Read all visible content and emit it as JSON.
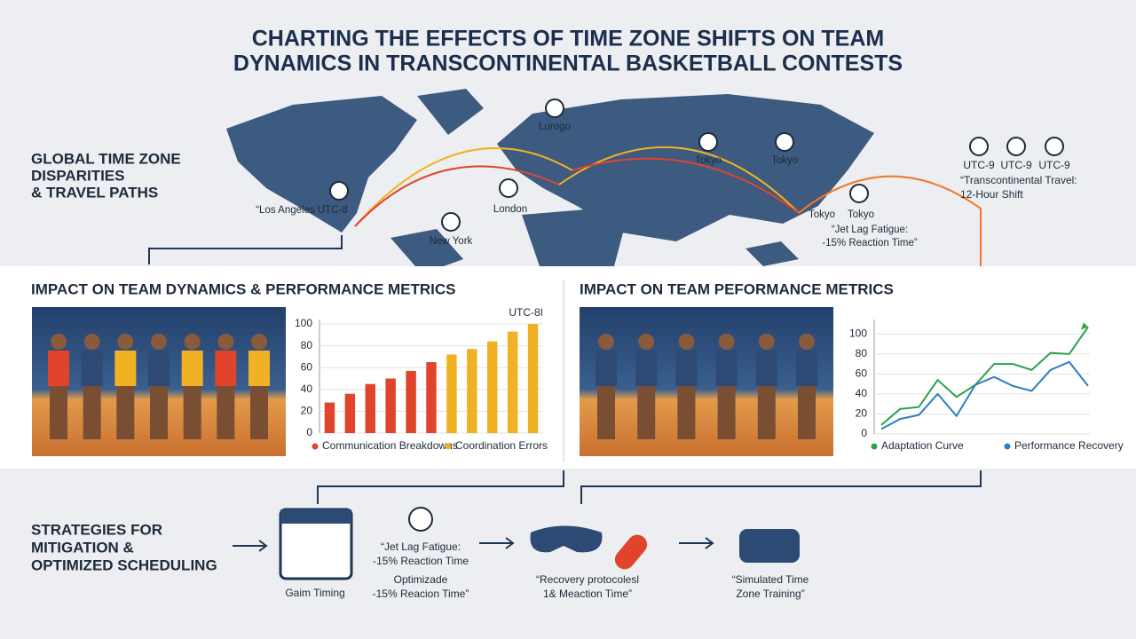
{
  "header": {
    "title_lines": [
      "CHARTING THE EFFECTS OF TIME ZONE SHIFTS ON TEAM",
      "DYNAMICS IN TRANSCONTINENTAL BASKETBALL CONTESTS"
    ]
  },
  "map_section": {
    "heading_lines": [
      "GLOBAL TIME ZONE",
      "DISPARITIES",
      "& TRAVEL PATHS"
    ],
    "labels": [
      "Lurogo",
      "Tokyo",
      "Tokyo",
      "“Los Angeles UTC-8",
      "London",
      "New York",
      "Tokyo",
      "Tokyo"
    ],
    "note_lines": [
      "“Jet Lag Fatigue:",
      "-15% Reaction Time”"
    ],
    "utc_clocks": [
      "UTC-9",
      "UTC-9",
      "UTC-9"
    ],
    "travel_lines": [
      "“Transcontinental Travel:",
      "12-Hour Shift"
    ]
  },
  "panels": [
    "IMPACT ON TEAM DYNAMICS & PERFORMANCE METRICS",
    "IMPACT ON TEAM PEFORMANCE METRICS"
  ],
  "chart_data": [
    {
      "type": "bar",
      "annotation": "UTC-8I",
      "ylim": [
        0,
        100
      ],
      "yticks": [
        0,
        20,
        40,
        60,
        80,
        100
      ],
      "series": [
        {
          "name": "Communication Breakdowns",
          "color": "#e0452c",
          "values": [
            28,
            36,
            45,
            50,
            57,
            65,
            null,
            null,
            null,
            null,
            null
          ]
        },
        {
          "name": "Coordination Errors",
          "color": "#f0b224",
          "values": [
            null,
            null,
            null,
            null,
            null,
            null,
            72,
            77,
            84,
            93,
            100
          ]
        }
      ]
    },
    {
      "type": "line",
      "ylim": [
        0,
        110
      ],
      "yticks": [
        0,
        20,
        40,
        60,
        80,
        100
      ],
      "series": [
        {
          "name": "Adaptation Curve",
          "color": "#2ca24a",
          "values": [
            9,
            25,
            27,
            54,
            37,
            49,
            70,
            70,
            64,
            81,
            80,
            107
          ]
        },
        {
          "name": "Performance Recovery",
          "color": "#2b7fc0",
          "values": [
            5,
            15,
            19,
            40,
            18,
            49,
            57,
            48,
            43,
            64,
            72,
            48
          ]
        }
      ]
    }
  ],
  "strategies": {
    "heading_lines": [
      "STRATEGIES FOR",
      "MITIGATION &",
      "OPTIMIZED SCHEDULING"
    ],
    "items": [
      "Gaim Timing",
      "“Jet Lag Fatigue:",
      "-15% Reaction Time",
      "Optimizade",
      "-15% Reacion Time”",
      "“Recovery protocolesl",
      "1& Meaction Time”",
      "“Simulated Time",
      "Zone Training”"
    ]
  }
}
